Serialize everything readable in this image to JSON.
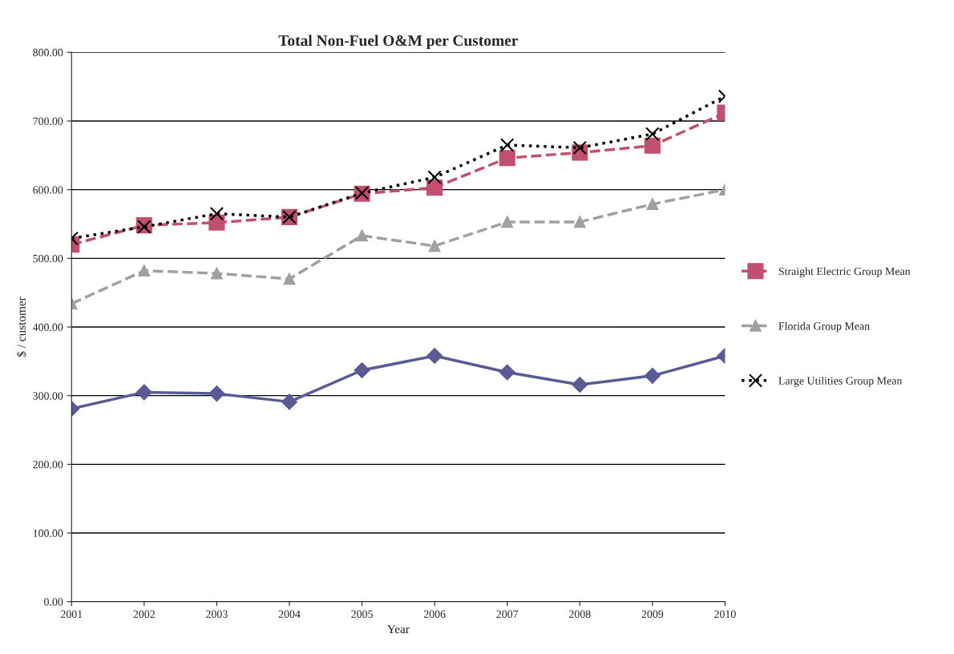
{
  "chart_data": {
    "type": "line",
    "title": "Total Non-Fuel O&M per Customer",
    "xlabel": "Year",
    "ylabel": "$ / customer",
    "x": [
      2001,
      2002,
      2003,
      2004,
      2005,
      2006,
      2007,
      2008,
      2009,
      2010
    ],
    "xlim": [
      2001,
      2010
    ],
    "xticks": [
      2001,
      2002,
      2003,
      2004,
      2005,
      2006,
      2007,
      2008,
      2009,
      2010
    ],
    "ylim": [
      0,
      800
    ],
    "yticks": [
      {
        "value": 0,
        "label": "0.00"
      },
      {
        "value": 100,
        "label": "100.00"
      },
      {
        "value": 200,
        "label": "200.00"
      },
      {
        "value": 300,
        "label": "300.00"
      },
      {
        "value": 400,
        "label": "400.00"
      },
      {
        "value": 500,
        "label": "500.00"
      },
      {
        "value": 600,
        "label": "600.00"
      },
      {
        "value": 700,
        "label": "700.00"
      },
      {
        "value": 800,
        "label": "800.00"
      }
    ],
    "grid": "y",
    "legend": "right",
    "series": [
      {
        "color": "#5a5a96",
        "marker": "diamond",
        "line_style": "solid",
        "values": [
          281,
          305,
          303,
          291,
          337,
          358,
          334,
          316,
          329,
          358
        ]
      },
      {
        "name": "Straight Electric Group Mean",
        "color": "#c0506e",
        "marker": "square",
        "line_style": "dashed",
        "values": [
          520,
          548,
          552,
          560,
          594,
          603,
          646,
          654,
          664,
          712
        ]
      },
      {
        "name": "Florida Group Mean",
        "color": "#a0a0a0",
        "marker": "triangle",
        "line_style": "dashed",
        "values": [
          434,
          482,
          478,
          470,
          533,
          518,
          553,
          553,
          579,
          600
        ]
      },
      {
        "name": "Large Utilities Group Mean",
        "color": "#000000",
        "marker": "cross",
        "line_style": "dotted",
        "values": [
          529,
          546,
          565,
          560,
          595,
          618,
          665,
          661,
          681,
          736
        ]
      }
    ]
  }
}
